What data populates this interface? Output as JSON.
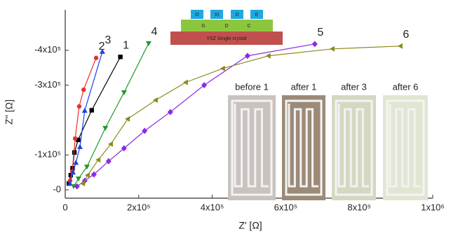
{
  "chart_data": {
    "type": "line",
    "xlabel": "Z' [Ω]",
    "ylabel": "Z'' [Ω]",
    "xlim": [
      0,
      1000000
    ],
    "ylim": [
      24000,
      -516000
    ],
    "xticks": [
      {
        "value": 0,
        "label": "0"
      },
      {
        "value": 200000,
        "label": "2x10⁵"
      },
      {
        "value": 400000,
        "label": "4x10⁵"
      },
      {
        "value": 600000,
        "label": "6x10⁵"
      },
      {
        "value": 800000,
        "label": "8x10⁵"
      },
      {
        "value": 1000000,
        "label": "1x10⁶"
      }
    ],
    "yticks": [
      {
        "value": 0,
        "label": "-0"
      },
      {
        "value": -100000,
        "label": "-1x10⁵"
      },
      {
        "value": -300000,
        "label": "-3x10⁵"
      },
      {
        "value": -400000,
        "label": "-4x10⁵"
      }
    ],
    "series": [
      {
        "name": "1",
        "color": "#000000",
        "marker": "square",
        "x": [
          10000,
          15000,
          20000,
          25000,
          35000,
          72000,
          150000
        ],
        "values": [
          -18000,
          -42000,
          -62000,
          -107000,
          -143000,
          -228000,
          -381000
        ]
      },
      {
        "name": "2",
        "color": "#e8312a",
        "marker": "circle",
        "x": [
          13000,
          19000,
          27000,
          38000,
          50000,
          84000
        ],
        "values": [
          -26000,
          -52000,
          -147000,
          -239000,
          -287000,
          -378000
        ]
      },
      {
        "name": "3",
        "color": "#1f3fe0",
        "marker": "triangle-up",
        "x": [
          13000,
          21000,
          29000,
          40000,
          53000,
          101000
        ],
        "values": [
          -18000,
          -50000,
          -78000,
          -123000,
          -227000,
          -396000
        ]
      },
      {
        "name": "4",
        "color": "#1f9a2a",
        "marker": "triangle-down",
        "x": [
          23000,
          36000,
          59000,
          109000,
          160000,
          227000
        ],
        "values": [
          -10000,
          -32000,
          -66000,
          -177000,
          -279000,
          -420000
        ]
      },
      {
        "name": "5",
        "color": "#8a2be2",
        "marker": "diamond",
        "x": [
          32000,
          53000,
          78000,
          118000,
          160000,
          216000,
          286000,
          378000,
          496000,
          679000
        ],
        "values": [
          -10000,
          -26000,
          -44000,
          -82000,
          -119000,
          -169000,
          -223000,
          -300000,
          -384000,
          -418000
        ]
      },
      {
        "name": "6",
        "color": "#8b8b1a",
        "marker": "triangle-left",
        "x": [
          48000,
          61000,
          90000,
          124000,
          170000,
          246000,
          328000,
          429000,
          553000,
          727000,
          912000
        ],
        "values": [
          -18000,
          -42000,
          -86000,
          -131000,
          -203000,
          -257000,
          -308000,
          -348000,
          -384000,
          -404000,
          -412000
        ]
      }
    ]
  },
  "inset": {
    "photos": [
      "before 1",
      "after 1",
      "after 3",
      "after 6"
    ],
    "substrate": "YSZ Single crystal",
    "layer": [
      "G",
      "D",
      "C"
    ],
    "top": [
      "O",
      "XI",
      "D",
      "E"
    ]
  }
}
